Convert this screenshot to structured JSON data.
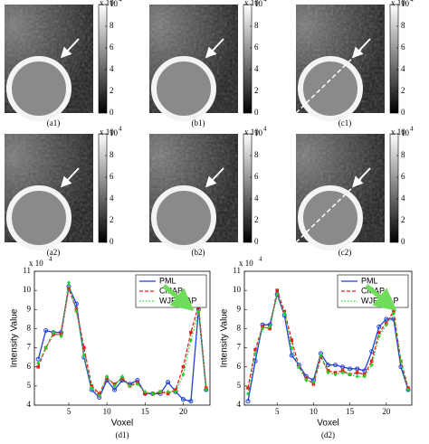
{
  "panels": [
    {
      "label": "(a1)"
    },
    {
      "label": "(b1)"
    },
    {
      "label": "(c1)"
    },
    {
      "label": "(a2)"
    },
    {
      "label": "(b2)"
    },
    {
      "label": "(c2)"
    }
  ],
  "colorbar": {
    "ticks": [
      0,
      2,
      4,
      6,
      8,
      10
    ],
    "multiplier": "x 10",
    "exponent": "4"
  },
  "chart_data": [
    {
      "type": "line",
      "caption": "(d1)",
      "xlabel": "Voxel",
      "ylabel": "Intensity Value",
      "y_multiplier": "x 10",
      "y_exponent": "4",
      "legend": "upper right",
      "x": [
        1,
        2,
        3,
        4,
        5,
        6,
        7,
        8,
        9,
        10,
        11,
        12,
        13,
        14,
        15,
        16,
        17,
        18,
        19,
        20,
        21,
        22,
        23
      ],
      "xlim": [
        0.5,
        23.5
      ],
      "xticks": [
        5,
        10,
        15,
        20
      ],
      "ylim": [
        4,
        11
      ],
      "yticks": [
        4,
        5,
        6,
        7,
        8,
        9,
        10,
        11
      ],
      "series": [
        {
          "name": "PML",
          "color": "#1f3fd6",
          "dash": "solid",
          "marker": "circle",
          "values": [
            6.4,
            7.9,
            7.8,
            7.8,
            10.2,
            9.3,
            6.5,
            4.8,
            4.4,
            5.3,
            4.8,
            5.3,
            5.1,
            5.3,
            4.6,
            4.6,
            4.6,
            5.2,
            4.7,
            4.3,
            4.2,
            9.0,
            4.8
          ]
        },
        {
          "name": "CMAP",
          "color": "#e0201b",
          "dash": "dashed",
          "marker": "square",
          "values": [
            6.0,
            7.0,
            7.7,
            7.7,
            10.1,
            9.0,
            7.0,
            5.0,
            4.6,
            5.4,
            5.1,
            5.4,
            5.0,
            5.2,
            4.6,
            4.6,
            4.7,
            4.6,
            4.8,
            6.0,
            7.8,
            9.2,
            4.9
          ]
        },
        {
          "name": "WJE-MAP",
          "color": "#22d42a",
          "dash": "dotted",
          "marker": "diamond",
          "values": [
            6.2,
            7.0,
            7.8,
            7.6,
            10.4,
            8.9,
            6.6,
            4.9,
            4.5,
            5.5,
            5.0,
            5.5,
            5.0,
            5.1,
            4.7,
            4.6,
            4.7,
            4.7,
            4.7,
            5.6,
            7.4,
            8.9,
            4.8
          ]
        }
      ]
    },
    {
      "type": "line",
      "caption": "(d2)",
      "xlabel": "Voxel",
      "ylabel": "Intensity Value",
      "y_multiplier": "x 10",
      "y_exponent": "4",
      "legend": "upper right",
      "x": [
        1,
        2,
        3,
        4,
        5,
        6,
        7,
        8,
        9,
        10,
        11,
        12,
        13,
        14,
        15,
        16,
        17,
        18,
        19,
        20,
        21,
        22,
        23
      ],
      "xlim": [
        0.5,
        23.5
      ],
      "xticks": [
        5,
        10,
        15,
        20
      ],
      "ylim": [
        4,
        11
      ],
      "yticks": [
        4,
        5,
        6,
        7,
        8,
        9,
        10,
        11
      ],
      "series": [
        {
          "name": "PML",
          "color": "#1f3fd6",
          "dash": "solid",
          "marker": "circle",
          "values": [
            4.2,
            6.3,
            8.2,
            8.2,
            9.8,
            8.7,
            6.6,
            6.1,
            5.5,
            5.3,
            6.7,
            6.1,
            6.1,
            6.0,
            5.9,
            5.9,
            5.8,
            6.8,
            8.1,
            8.5,
            8.5,
            6.0,
            4.8
          ]
        },
        {
          "name": "CMAP",
          "color": "#e0201b",
          "dash": "dashed",
          "marker": "square",
          "values": [
            4.9,
            6.9,
            8.1,
            8.0,
            10.0,
            8.9,
            7.4,
            6.0,
            5.4,
            5.1,
            6.5,
            5.8,
            5.7,
            5.8,
            5.6,
            5.7,
            5.6,
            6.3,
            7.8,
            8.3,
            8.9,
            6.3,
            4.9
          ]
        },
        {
          "name": "WJE-MAP",
          "color": "#22d42a",
          "dash": "dotted",
          "marker": "diamond",
          "values": [
            4.6,
            6.7,
            8.0,
            8.1,
            9.8,
            8.8,
            7.0,
            6.0,
            5.3,
            5.2,
            6.6,
            5.7,
            5.6,
            5.7,
            5.6,
            5.5,
            5.5,
            6.1,
            7.6,
            8.2,
            8.8,
            6.3,
            4.8
          ]
        }
      ]
    }
  ]
}
